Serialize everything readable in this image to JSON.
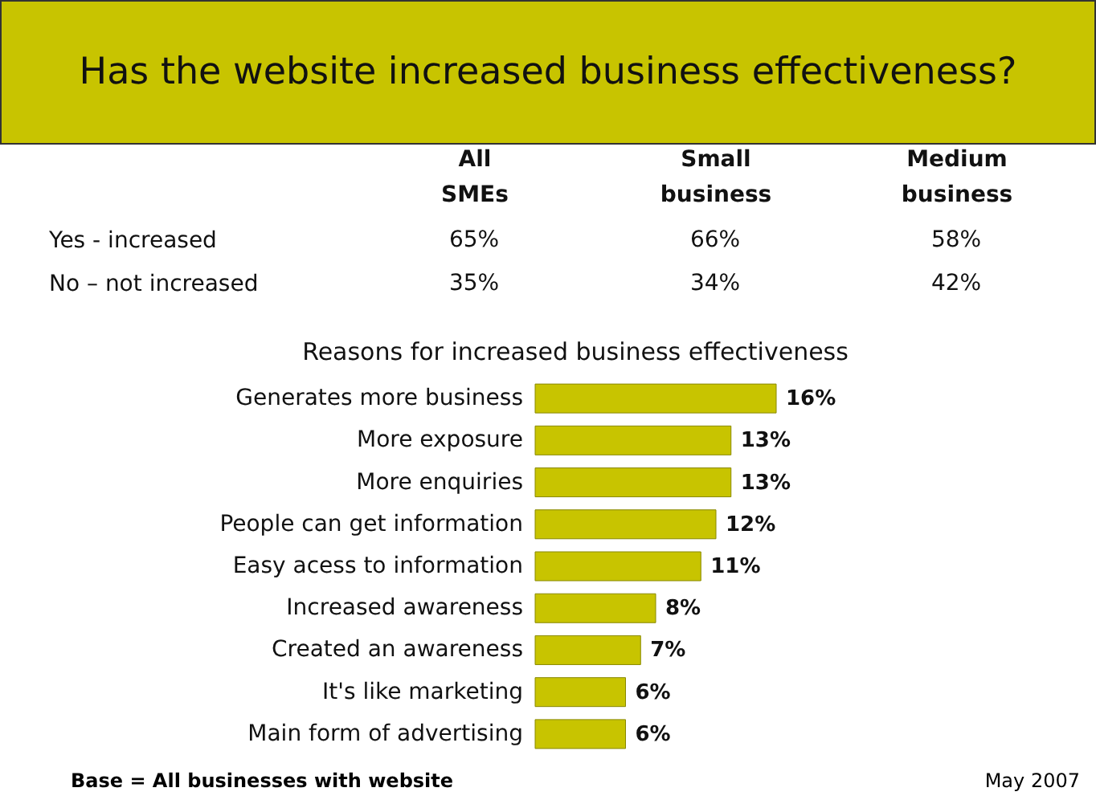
{
  "chart_data": [
    {
      "type": "other",
      "title": "Has the website increased business effectiveness?",
      "categories": [
        "All SMEs",
        "Small business",
        "Medium business"
      ],
      "y_categories": [
        "Yes - increased",
        "No – not increased"
      ],
      "cell_labels": [
        [
          "65%",
          "66%",
          "58%"
        ],
        [
          "35%",
          "34%",
          "42%"
        ]
      ]
    },
    {
      "type": "bar",
      "orientation": "horizontal",
      "title": "Reasons for increased business effectiveness",
      "categories": [
        "Generates more business",
        "More exposure",
        "More enquiries",
        "People can get information",
        "Easy acess to information",
        "Increased awareness",
        "Created an awareness",
        "It's like marketing",
        "Main form of advertising"
      ],
      "values": [
        16,
        13,
        13,
        12,
        11,
        8,
        7,
        6,
        6
      ],
      "value_labels": [
        "16%",
        "13%",
        "13%",
        "12%",
        "11%",
        "8%",
        "7%",
        "6%",
        "6%"
      ],
      "color": "#c8c400",
      "data_labels": false,
      "annotations": [
        "Base = All businesses with website",
        "May 2007"
      ]
    }
  ]
}
